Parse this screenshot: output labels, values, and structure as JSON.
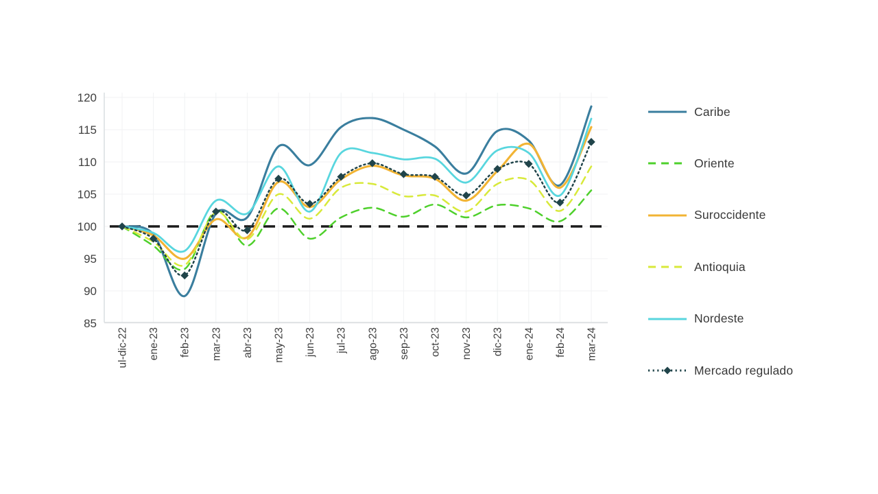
{
  "figure": {
    "background_color": "#ffffff",
    "title": ""
  },
  "y_axis": {
    "ticks": [
      85,
      90,
      95,
      100,
      105,
      110,
      115,
      120
    ],
    "min": 85,
    "max": 120
  },
  "baseline": {
    "value": 100,
    "color": "#1b1b1b",
    "style": "dashed"
  },
  "chart_data": {
    "type": "line",
    "categories": [
      "ul-dic-22",
      "ene-23",
      "feb-23",
      "mar-23",
      "abr-23",
      "may-23",
      "jun-23",
      "jul-23",
      "ago-23",
      "sep-23",
      "oct-23",
      "nov-23",
      "dic-23",
      "ene-24",
      "feb-24",
      "mar-24"
    ],
    "series": [
      {
        "name": "Caribe",
        "color": "#3a7e9e",
        "line_style": "solid",
        "marker": "none",
        "values": [
          100,
          98.8,
          89.2,
          102.0,
          101.4,
          112.4,
          109.5,
          115.4,
          116.8,
          115.0,
          112.4,
          108.2,
          114.8,
          113.3,
          106.4,
          118.6
        ]
      },
      {
        "name": "Oriente",
        "color": "#4ed02b",
        "line_style": "dashed",
        "marker": "none",
        "values": [
          100,
          97.0,
          93.4,
          102.4,
          97.0,
          102.8,
          98.1,
          101.4,
          102.9,
          101.5,
          103.4,
          101.4,
          103.3,
          102.8,
          100.8,
          105.6
        ]
      },
      {
        "name": "Suroccidente",
        "color": "#f2b434",
        "line_style": "solid",
        "marker": "none",
        "values": [
          100,
          98.6,
          95.0,
          101.1,
          98.3,
          106.9,
          103.0,
          107.3,
          109.4,
          107.9,
          107.4,
          104.0,
          108.6,
          112.8,
          106.0,
          115.4
        ]
      },
      {
        "name": "Antioquia",
        "color": "#d8e93a",
        "line_style": "dashed",
        "marker": "none",
        "values": [
          100,
          97.6,
          94.0,
          102.2,
          98.0,
          105.0,
          101.2,
          106.0,
          106.6,
          104.7,
          104.8,
          102.3,
          106.6,
          107.2,
          102.4,
          109.3
        ]
      },
      {
        "name": "Nordeste",
        "color": "#58d6de",
        "line_style": "solid",
        "marker": "none",
        "values": [
          100,
          99.0,
          96.2,
          104.0,
          102.0,
          109.3,
          102.3,
          111.4,
          111.4,
          110.4,
          110.5,
          106.8,
          111.8,
          111.4,
          104.8,
          116.7
        ]
      },
      {
        "name": "Mercado regulado",
        "color": "#20444a",
        "line_style": "dotted",
        "marker": "diamond",
        "values": [
          100,
          98.1,
          92.4,
          102.3,
          99.4,
          107.4,
          103.5,
          107.7,
          109.8,
          108.1,
          107.7,
          104.8,
          108.9,
          109.7,
          103.7,
          113.1
        ]
      }
    ],
    "ylim": [
      85,
      120
    ],
    "grid": true,
    "legend_position": "right",
    "baseline": 100,
    "xlabel": "",
    "ylabel": ""
  }
}
